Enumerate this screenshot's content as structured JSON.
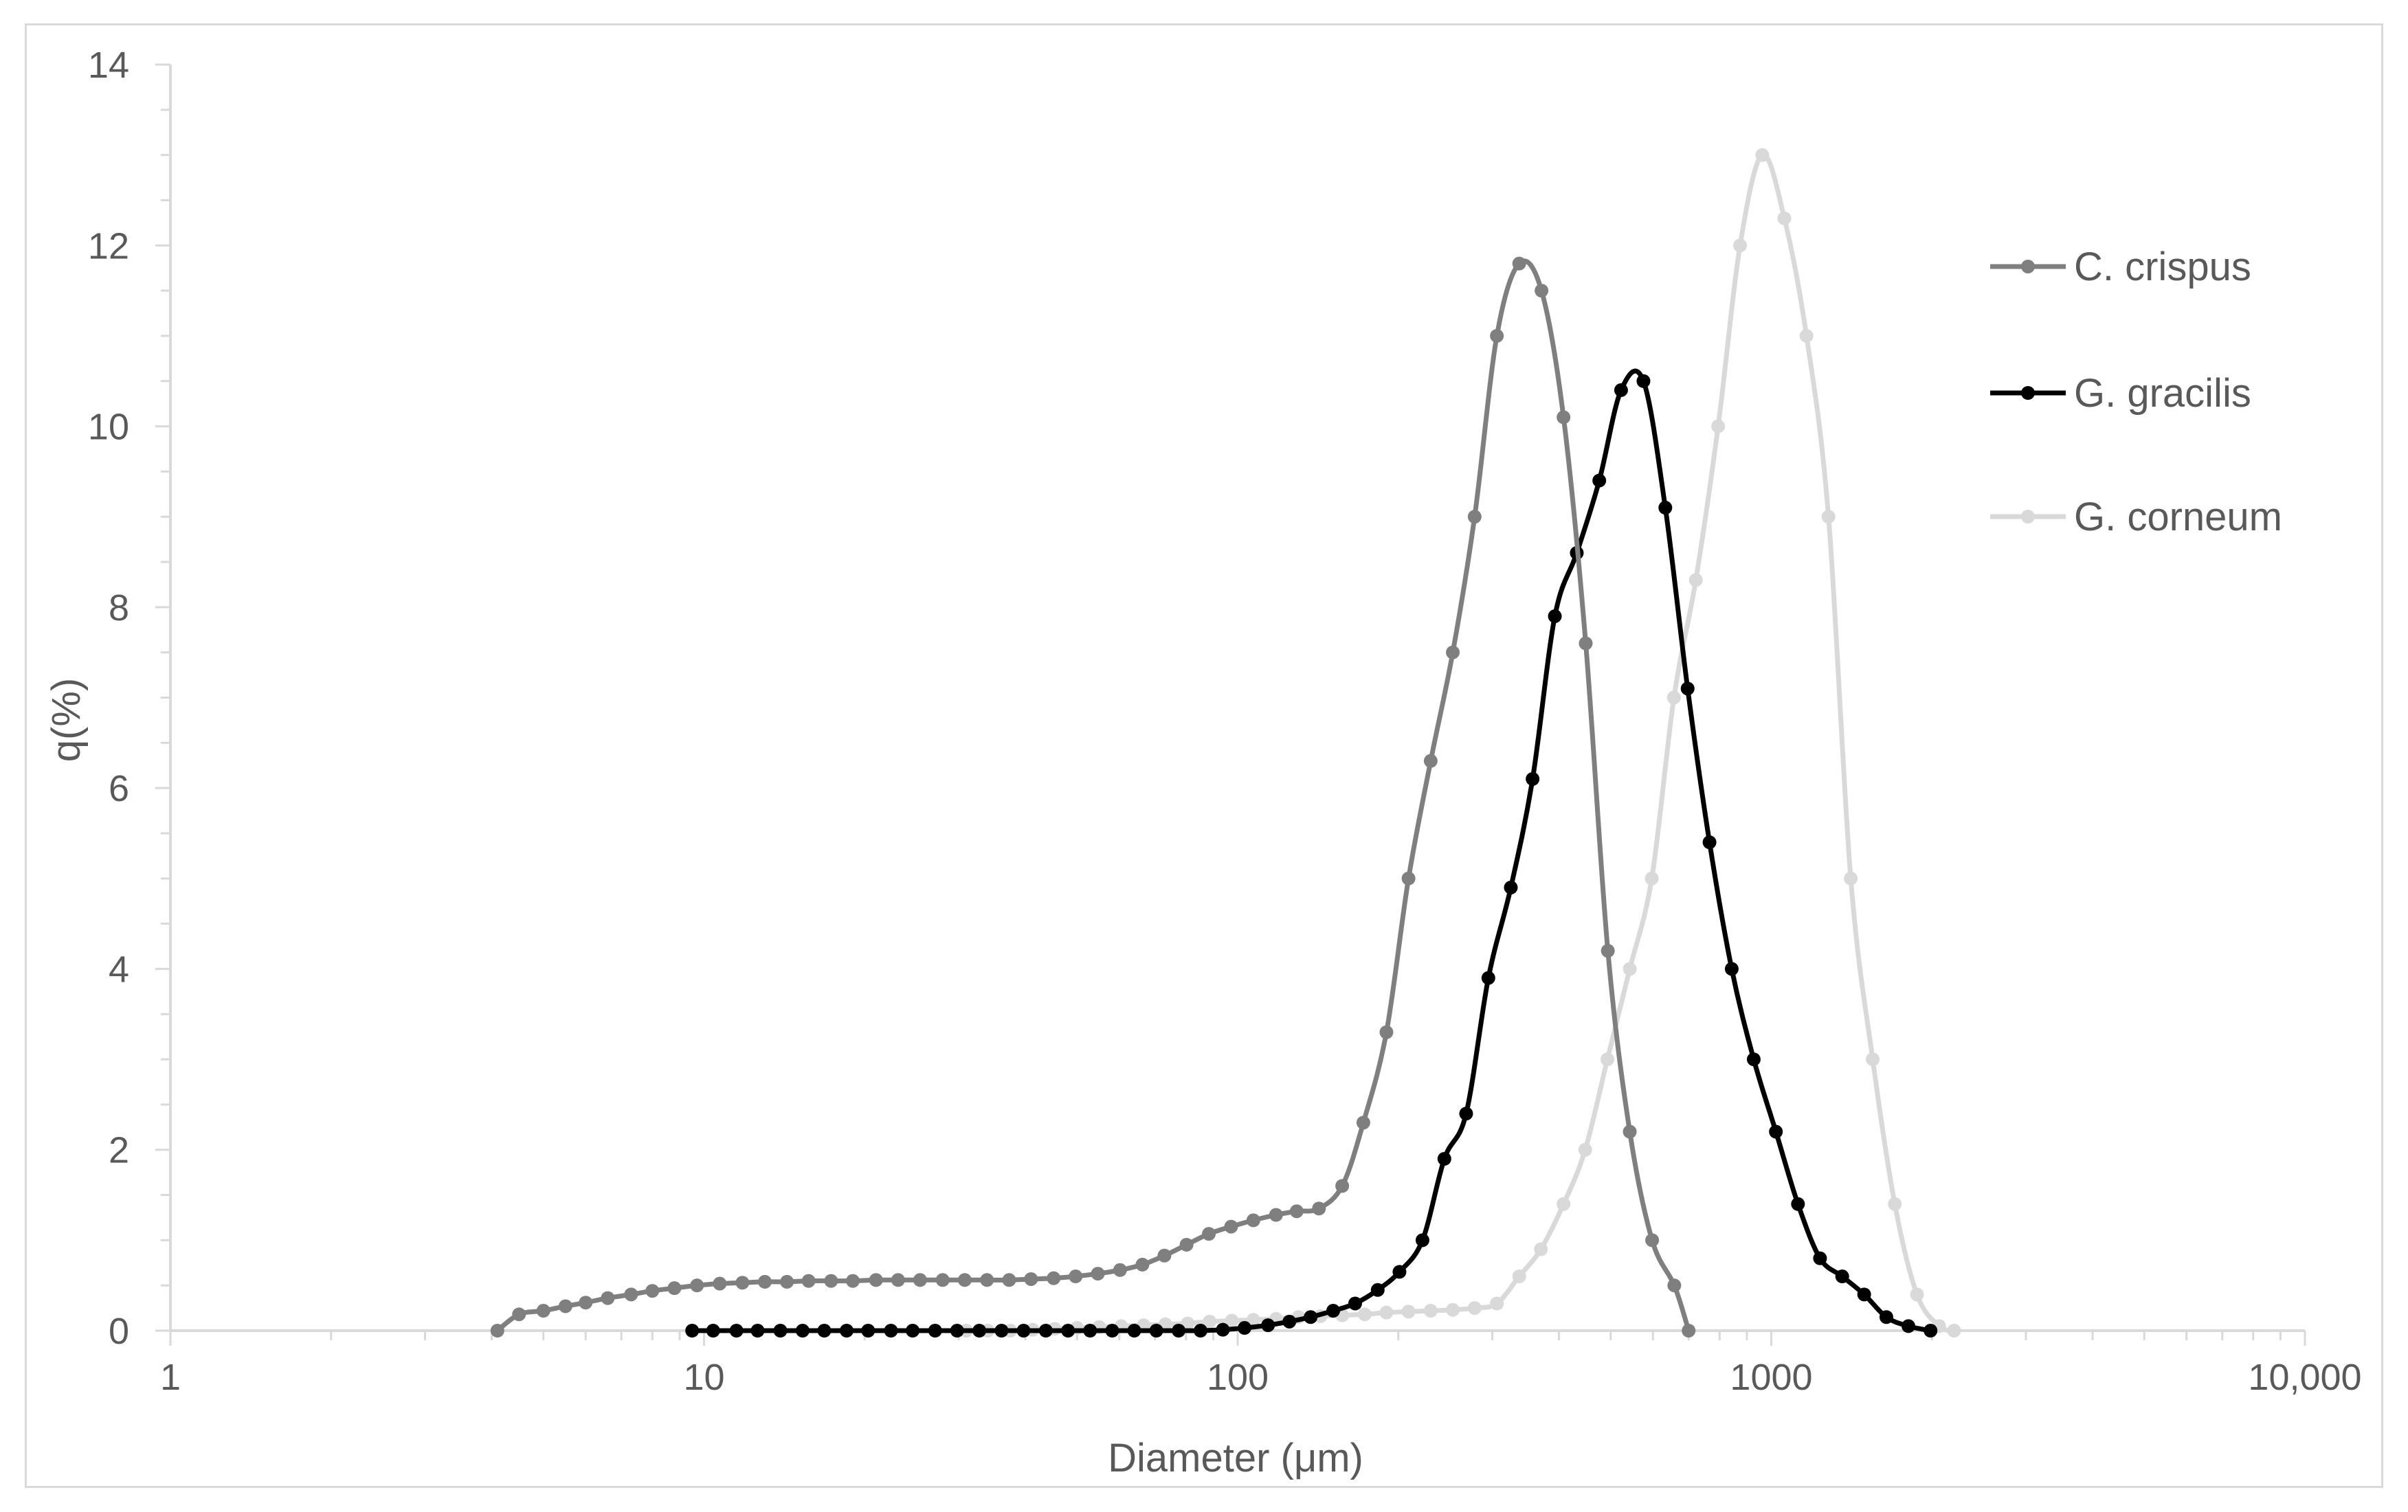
{
  "chart_data": {
    "type": "line",
    "title": "",
    "xlabel": "Diameter (μm)",
    "ylabel": "q(%)",
    "xscale": "log",
    "xlim": [
      1,
      10000
    ],
    "ylim": [
      0,
      14
    ],
    "xticks": [
      {
        "value": 1,
        "label": "1"
      },
      {
        "value": 10,
        "label": "10"
      },
      {
        "value": 100,
        "label": "100"
      },
      {
        "value": 1000,
        "label": "1000"
      },
      {
        "value": 10000,
        "label": "10,000"
      }
    ],
    "yticks": [
      {
        "value": 0,
        "label": "0"
      },
      {
        "value": 2,
        "label": "2"
      },
      {
        "value": 4,
        "label": "4"
      },
      {
        "value": 6,
        "label": "6"
      },
      {
        "value": 8,
        "label": "8"
      },
      {
        "value": 10,
        "label": "10"
      },
      {
        "value": 12,
        "label": "12"
      },
      {
        "value": 14,
        "label": "14"
      }
    ],
    "grid": false,
    "legend_position": "right",
    "series": [
      {
        "name": "C. crispus",
        "color": "#7f7f7f",
        "x": [
          4.1,
          4.5,
          5.0,
          5.5,
          6.0,
          6.6,
          7.3,
          8.0,
          8.8,
          9.7,
          10.7,
          11.8,
          13.0,
          14.3,
          15.7,
          17.3,
          19.0,
          21.0,
          23.1,
          25.4,
          28.0,
          30.8,
          33.9,
          37.3,
          41.0,
          45.2,
          49.7,
          54.7,
          60.2,
          66.3,
          72.9,
          80.2,
          88.3,
          97.2,
          107,
          118,
          129,
          142,
          157,
          172,
          190,
          209,
          230,
          253,
          278,
          306,
          337,
          371,
          408,
          449,
          494,
          543,
          598,
          658,
          700
        ],
        "y": [
          0.0,
          0.18,
          0.22,
          0.27,
          0.31,
          0.36,
          0.4,
          0.44,
          0.47,
          0.5,
          0.52,
          0.53,
          0.54,
          0.54,
          0.55,
          0.55,
          0.55,
          0.56,
          0.56,
          0.56,
          0.56,
          0.56,
          0.56,
          0.56,
          0.57,
          0.58,
          0.6,
          0.63,
          0.67,
          0.73,
          0.83,
          0.95,
          1.07,
          1.15,
          1.22,
          1.28,
          1.32,
          1.35,
          1.6,
          2.3,
          3.3,
          5.0,
          6.3,
          7.5,
          9.0,
          11.0,
          11.8,
          11.5,
          10.1,
          7.6,
          4.2,
          2.2,
          1.0,
          0.5,
          0.0
        ]
      },
      {
        "name": "G. gracilis",
        "color": "#000000",
        "x": [
          9.5,
          10.4,
          11.5,
          12.6,
          13.9,
          15.3,
          16.8,
          18.5,
          20.3,
          22.4,
          24.6,
          27.1,
          29.8,
          32.8,
          36.1,
          39.7,
          43.7,
          48.1,
          52.9,
          58.2,
          64.0,
          70.4,
          77.5,
          85.2,
          93.8,
          103,
          114,
          125,
          137,
          151,
          166,
          183,
          201,
          222,
          244,
          268,
          295,
          325,
          357,
          393,
          432,
          476,
          523,
          576,
          633,
          697,
          766,
          843,
          927,
          1020,
          1122,
          1234,
          1358,
          1493,
          1643,
          1807,
          1988
        ],
        "y": [
          0.0,
          0.0,
          0.0,
          0.0,
          0.0,
          0.0,
          0.0,
          0.0,
          0.0,
          0.0,
          0.0,
          0.0,
          0.0,
          0.0,
          0.0,
          0.0,
          0.0,
          0.0,
          0.0,
          0.0,
          0.0,
          0.0,
          0.0,
          0.0,
          0.01,
          0.03,
          0.06,
          0.1,
          0.15,
          0.22,
          0.3,
          0.45,
          0.65,
          1.0,
          1.9,
          2.4,
          3.9,
          4.9,
          6.1,
          7.9,
          8.6,
          9.4,
          10.4,
          10.5,
          9.1,
          7.1,
          5.4,
          4.0,
          3.0,
          2.2,
          1.4,
          0.8,
          0.6,
          0.4,
          0.15,
          0.05,
          0.0
        ]
      },
      {
        "name": "G. corneum",
        "color": "#d9d9d9",
        "x": [
          31,
          34,
          37.5,
          41.3,
          45.4,
          50.0,
          55.0,
          60.5,
          66.6,
          73.2,
          80.6,
          88.6,
          97.5,
          107,
          118,
          130,
          143,
          157,
          173,
          190,
          209,
          230,
          253,
          278,
          306,
          337,
          370,
          408,
          448,
          493,
          543,
          597,
          657,
          722,
          795,
          874,
          962,
          1058,
          1164,
          1280,
          1409,
          1549,
          1704,
          1875,
          2063,
          2200
        ],
        "y": [
          0.0,
          0.0,
          0.0,
          0.01,
          0.02,
          0.03,
          0.04,
          0.05,
          0.06,
          0.07,
          0.08,
          0.1,
          0.11,
          0.12,
          0.13,
          0.15,
          0.16,
          0.17,
          0.18,
          0.2,
          0.21,
          0.22,
          0.23,
          0.25,
          0.3,
          0.6,
          0.9,
          1.4,
          2.0,
          3.0,
          4.0,
          5.0,
          7.0,
          8.3,
          10.0,
          12.0,
          13.0,
          12.3,
          11.0,
          9.0,
          5.0,
          3.0,
          1.4,
          0.4,
          0.05,
          0.0
        ]
      }
    ]
  }
}
